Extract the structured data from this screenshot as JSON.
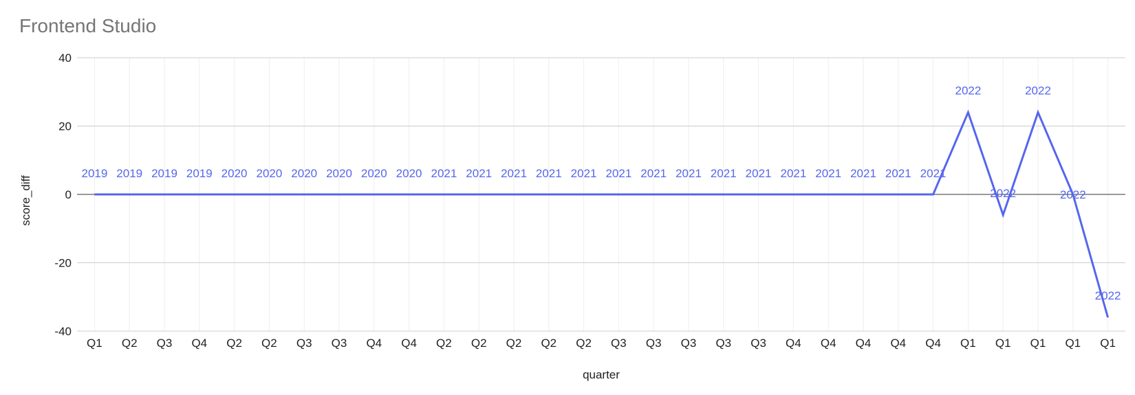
{
  "chart_data": {
    "type": "line",
    "title": "Frontend Studio",
    "xlabel": "quarter",
    "ylabel": "score_diff",
    "ylim": [
      -40,
      40
    ],
    "yticks": [
      40,
      20,
      0,
      -20,
      -40
    ],
    "grid": true,
    "legend": "none",
    "color": "#5566ee",
    "categories": [
      "Q1",
      "Q2",
      "Q3",
      "Q4",
      "Q2",
      "Q2",
      "Q3",
      "Q3",
      "Q4",
      "Q4",
      "Q2",
      "Q2",
      "Q2",
      "Q2",
      "Q2",
      "Q3",
      "Q3",
      "Q3",
      "Q3",
      "Q3",
      "Q4",
      "Q4",
      "Q4",
      "Q4",
      "Q4",
      "Q1",
      "Q1",
      "Q1",
      "Q1",
      "Q1"
    ],
    "data_labels": [
      "2019",
      "2019",
      "2019",
      "2019",
      "2020",
      "2020",
      "2020",
      "2020",
      "2020",
      "2020",
      "2021",
      "2021",
      "2021",
      "2021",
      "2021",
      "2021",
      "2021",
      "2021",
      "2021",
      "2021",
      "2021",
      "2021",
      "2021",
      "2021",
      "2021",
      "2022",
      "2022",
      "2022",
      "2022",
      "2022"
    ],
    "series": [
      {
        "values": [
          0,
          0,
          0,
          0,
          0,
          0,
          0,
          0,
          0,
          0,
          0,
          0,
          0,
          0,
          0,
          0,
          0,
          0,
          0,
          0,
          0,
          0,
          0,
          0,
          0,
          24,
          -6,
          24,
          0,
          -36
        ]
      }
    ]
  }
}
